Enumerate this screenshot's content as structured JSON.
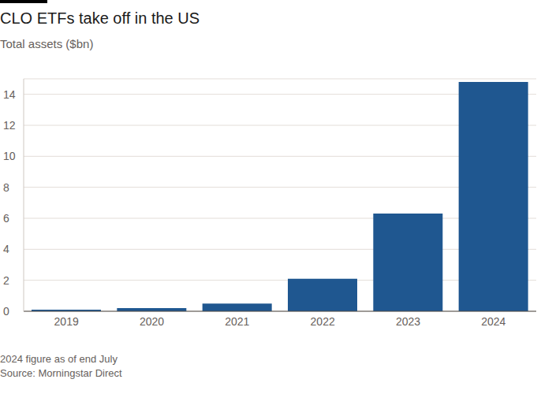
{
  "chart_data": {
    "type": "bar",
    "title": "CLO ETFs take off in the US",
    "subtitle": "Total assets ($bn)",
    "categories": [
      "2019",
      "2020",
      "2021",
      "2022",
      "2023",
      "2024"
    ],
    "values": [
      0.1,
      0.2,
      0.5,
      2.1,
      6.3,
      14.8
    ],
    "color": "#1f5790",
    "ylim": [
      0,
      15
    ],
    "yticks": [
      0,
      2,
      4,
      6,
      8,
      10,
      12,
      14
    ],
    "grid": true,
    "notes": [
      "2024 figure as of end July",
      "Source: Morningstar Direct"
    ]
  }
}
